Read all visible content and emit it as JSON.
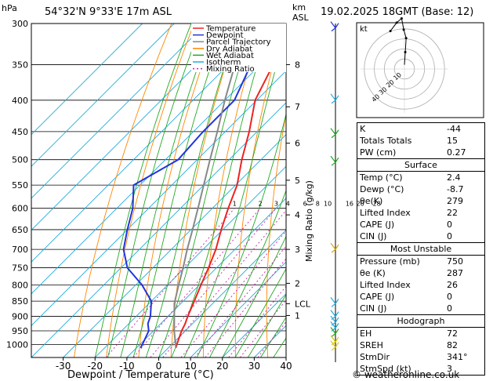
{
  "header": {
    "hpa_label": "hPa",
    "location": "54°32'N  9°33'E  17m  ASL",
    "km_label": "km",
    "asl_label": "ASL",
    "date": "19.02.2025  18GMT  (Base: 12)",
    "xlabel": "Dewpoint / Temperature (°C)",
    "mixing_ylabel": "Mixing Ratio (g/kg)",
    "credit": "© weatheronline.co.uk"
  },
  "legend": [
    {
      "label": "Temperature",
      "color": "#ee2222",
      "dash": ""
    },
    {
      "label": "Dewpoint",
      "color": "#2233dd",
      "dash": ""
    },
    {
      "label": "Parcel Trajectory",
      "color": "#888888",
      "dash": ""
    },
    {
      "label": "Dry Adiabat",
      "color": "#ff8800",
      "dash": ""
    },
    {
      "label": "Wet Adiabat",
      "color": "#22aa22",
      "dash": ""
    },
    {
      "label": "Isotherm",
      "color": "#22aadd",
      "dash": ""
    },
    {
      "label": "Mixing Ratio",
      "color": "#cc22aa",
      "dash": "2,3"
    }
  ],
  "chart_data": {
    "type": "line",
    "pressure_axis": {
      "label": "hPa",
      "ticks": [
        300,
        350,
        400,
        450,
        500,
        550,
        600,
        650,
        700,
        750,
        800,
        850,
        900,
        950,
        1000
      ],
      "scale": "log",
      "range": [
        300,
        1050
      ]
    },
    "temperature_axis": {
      "label": "Dewpoint / Temperature (°C)",
      "ticks": [
        -30,
        -20,
        -10,
        0,
        10,
        20,
        30,
        40
      ],
      "range": [
        -40,
        40
      ],
      "skew": true
    },
    "km_axis": [
      {
        "km": "8",
        "p": 350
      },
      {
        "km": "7",
        "p": 410
      },
      {
        "km": "6",
        "p": 470
      },
      {
        "km": "5",
        "p": 540
      },
      {
        "km": "4",
        "p": 615
      },
      {
        "km": "3",
        "p": 700
      },
      {
        "km": "2",
        "p": 795
      },
      {
        "km": "LCL",
        "p": 858
      },
      {
        "km": "1",
        "p": 897
      }
    ],
    "mixing_ratio_labels": [
      "1",
      "2",
      "3",
      "4",
      "6",
      "8",
      "10",
      "16",
      "20",
      "28"
    ],
    "mixing_ratio_values": [
      1,
      2,
      3,
      4,
      6,
      8,
      10,
      16,
      20,
      28
    ],
    "series": [
      {
        "name": "Temperature",
        "color": "#ee2222",
        "points": [
          [
            1013,
            2.4
          ],
          [
            1000,
            1.6
          ],
          [
            950,
            -1.2
          ],
          [
            925,
            -2.3
          ],
          [
            900,
            -3.8
          ],
          [
            850,
            -6.5
          ],
          [
            800,
            -9.5
          ],
          [
            750,
            -12.5
          ],
          [
            700,
            -16
          ],
          [
            650,
            -20.5
          ],
          [
            600,
            -25
          ],
          [
            550,
            -29.5
          ],
          [
            500,
            -36
          ],
          [
            450,
            -42.5
          ],
          [
            400,
            -50.5
          ],
          [
            350,
            -56
          ],
          [
            300,
            -60
          ]
        ]
      },
      {
        "name": "Dewpoint",
        "color": "#2233dd",
        "points": [
          [
            1013,
            -8.7
          ],
          [
            1000,
            -9.2
          ],
          [
            950,
            -11.5
          ],
          [
            925,
            -14
          ],
          [
            900,
            -15.5
          ],
          [
            850,
            -20
          ],
          [
            800,
            -28
          ],
          [
            750,
            -38
          ],
          [
            700,
            -45
          ],
          [
            650,
            -50
          ],
          [
            600,
            -55
          ],
          [
            550,
            -62
          ],
          [
            500,
            -56
          ],
          [
            450,
            -57
          ],
          [
            400,
            -57
          ],
          [
            350,
            -63
          ],
          [
            300,
            -70
          ]
        ]
      },
      {
        "name": "Parcel Trajectory",
        "color": "#888888",
        "points": [
          [
            1013,
            2.4
          ],
          [
            950,
            -3.5
          ],
          [
            900,
            -8
          ],
          [
            858,
            -12
          ],
          [
            800,
            -16.5
          ],
          [
            750,
            -20.5
          ],
          [
            700,
            -25
          ],
          [
            650,
            -29.5
          ],
          [
            600,
            -34.5
          ],
          [
            550,
            -40
          ],
          [
            500,
            -46
          ],
          [
            450,
            -52.5
          ],
          [
            400,
            -60
          ],
          [
            350,
            -68
          ],
          [
            300,
            -76
          ]
        ]
      }
    ]
  },
  "hodograph": {
    "label": "kt",
    "rings": [
      "10",
      "20",
      "30",
      "40"
    ],
    "trace": [
      [
        0,
        -3
      ],
      [
        0.6,
        -12
      ],
      [
        1.2,
        -22
      ],
      [
        -0.5,
        -28
      ],
      [
        -2,
        -36
      ],
      [
        -5.5,
        -33
      ],
      [
        -10,
        -27
      ]
    ]
  },
  "indices": [
    {
      "key": "K",
      "value": "-44"
    },
    {
      "key": "Totals Totals",
      "value": "15"
    },
    {
      "key": "PW (cm)",
      "value": "0.27"
    }
  ],
  "surface": {
    "title": "Surface",
    "rows": [
      {
        "key": "Temp (°C)",
        "value": "2.4"
      },
      {
        "key": "Dewp (°C)",
        "value": "-8.7"
      },
      {
        "key": "θe(K)",
        "value": "279"
      },
      {
        "key": "Lifted Index",
        "value": "22"
      },
      {
        "key": "CAPE (J)",
        "value": "0"
      },
      {
        "key": "CIN (J)",
        "value": "0"
      }
    ]
  },
  "most_unstable": {
    "title": "Most Unstable",
    "rows": [
      {
        "key": "Pressure (mb)",
        "value": "750"
      },
      {
        "key": "θe (K)",
        "value": "287"
      },
      {
        "key": "Lifted Index",
        "value": "26"
      },
      {
        "key": "CAPE (J)",
        "value": "0"
      },
      {
        "key": "CIN (J)",
        "value": "0"
      }
    ]
  },
  "hodograph_table": {
    "title": "Hodograph",
    "rows": [
      {
        "key": "EH",
        "value": "72"
      },
      {
        "key": "SREH",
        "value": "82"
      },
      {
        "key": "StmDir",
        "value": "341°"
      },
      {
        "key": "StmSpd (kt)",
        "value": "3"
      }
    ]
  }
}
